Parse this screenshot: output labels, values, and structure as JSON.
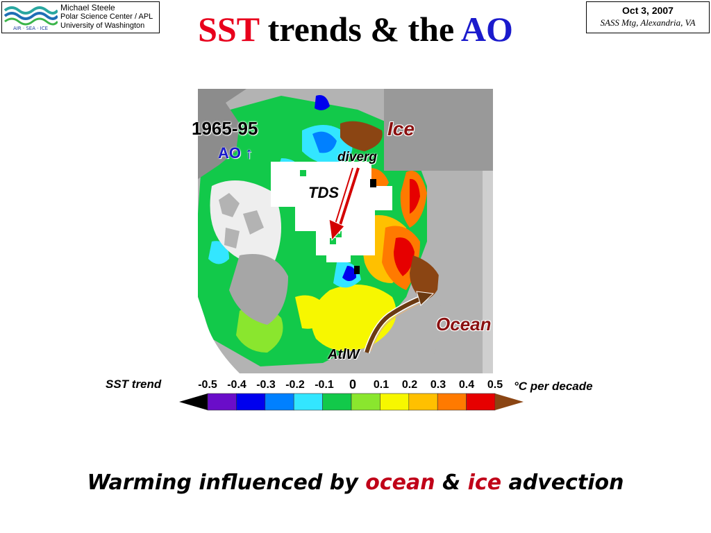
{
  "header": {
    "author": "Michael Steele",
    "affiliation1": "Polar Science Center / APL",
    "affiliation2": "University of Washington",
    "logo_text": "AIR · SEA · ICE",
    "date": "Oct 3, 2007",
    "meeting": "SASS Mtg, Alexandria, VA"
  },
  "title": {
    "part1": "SST",
    "part2": " trends & the ",
    "part3": "AO"
  },
  "map": {
    "period": "1965-95",
    "ao": "AO ↑",
    "ice": "Ice",
    "diverg": "diverg",
    "tds": "TDS",
    "ocean": "Ocean",
    "atlw": "AtlW"
  },
  "legend": {
    "title": "SST trend",
    "units": "°C per decade",
    "ticks": [
      "-0.5",
      "-0.4",
      "-0.3",
      "-0.2",
      "-0.1",
      "0",
      "0.1",
      "0.2",
      "0.3",
      "0.4",
      "0.5"
    ],
    "colors": [
      "#000000",
      "#6a0dc9",
      "#0000ee",
      "#0080ff",
      "#33e6ff",
      "#12c94a",
      "#8ae62e",
      "#f7f700",
      "#ffc000",
      "#ff7a00",
      "#e60000",
      "#8b4513"
    ]
  },
  "caption": {
    "part1": "Warming influenced by ",
    "part2": "ocean",
    "part3": " & ",
    "part4": "ice",
    "part5": " advection"
  }
}
